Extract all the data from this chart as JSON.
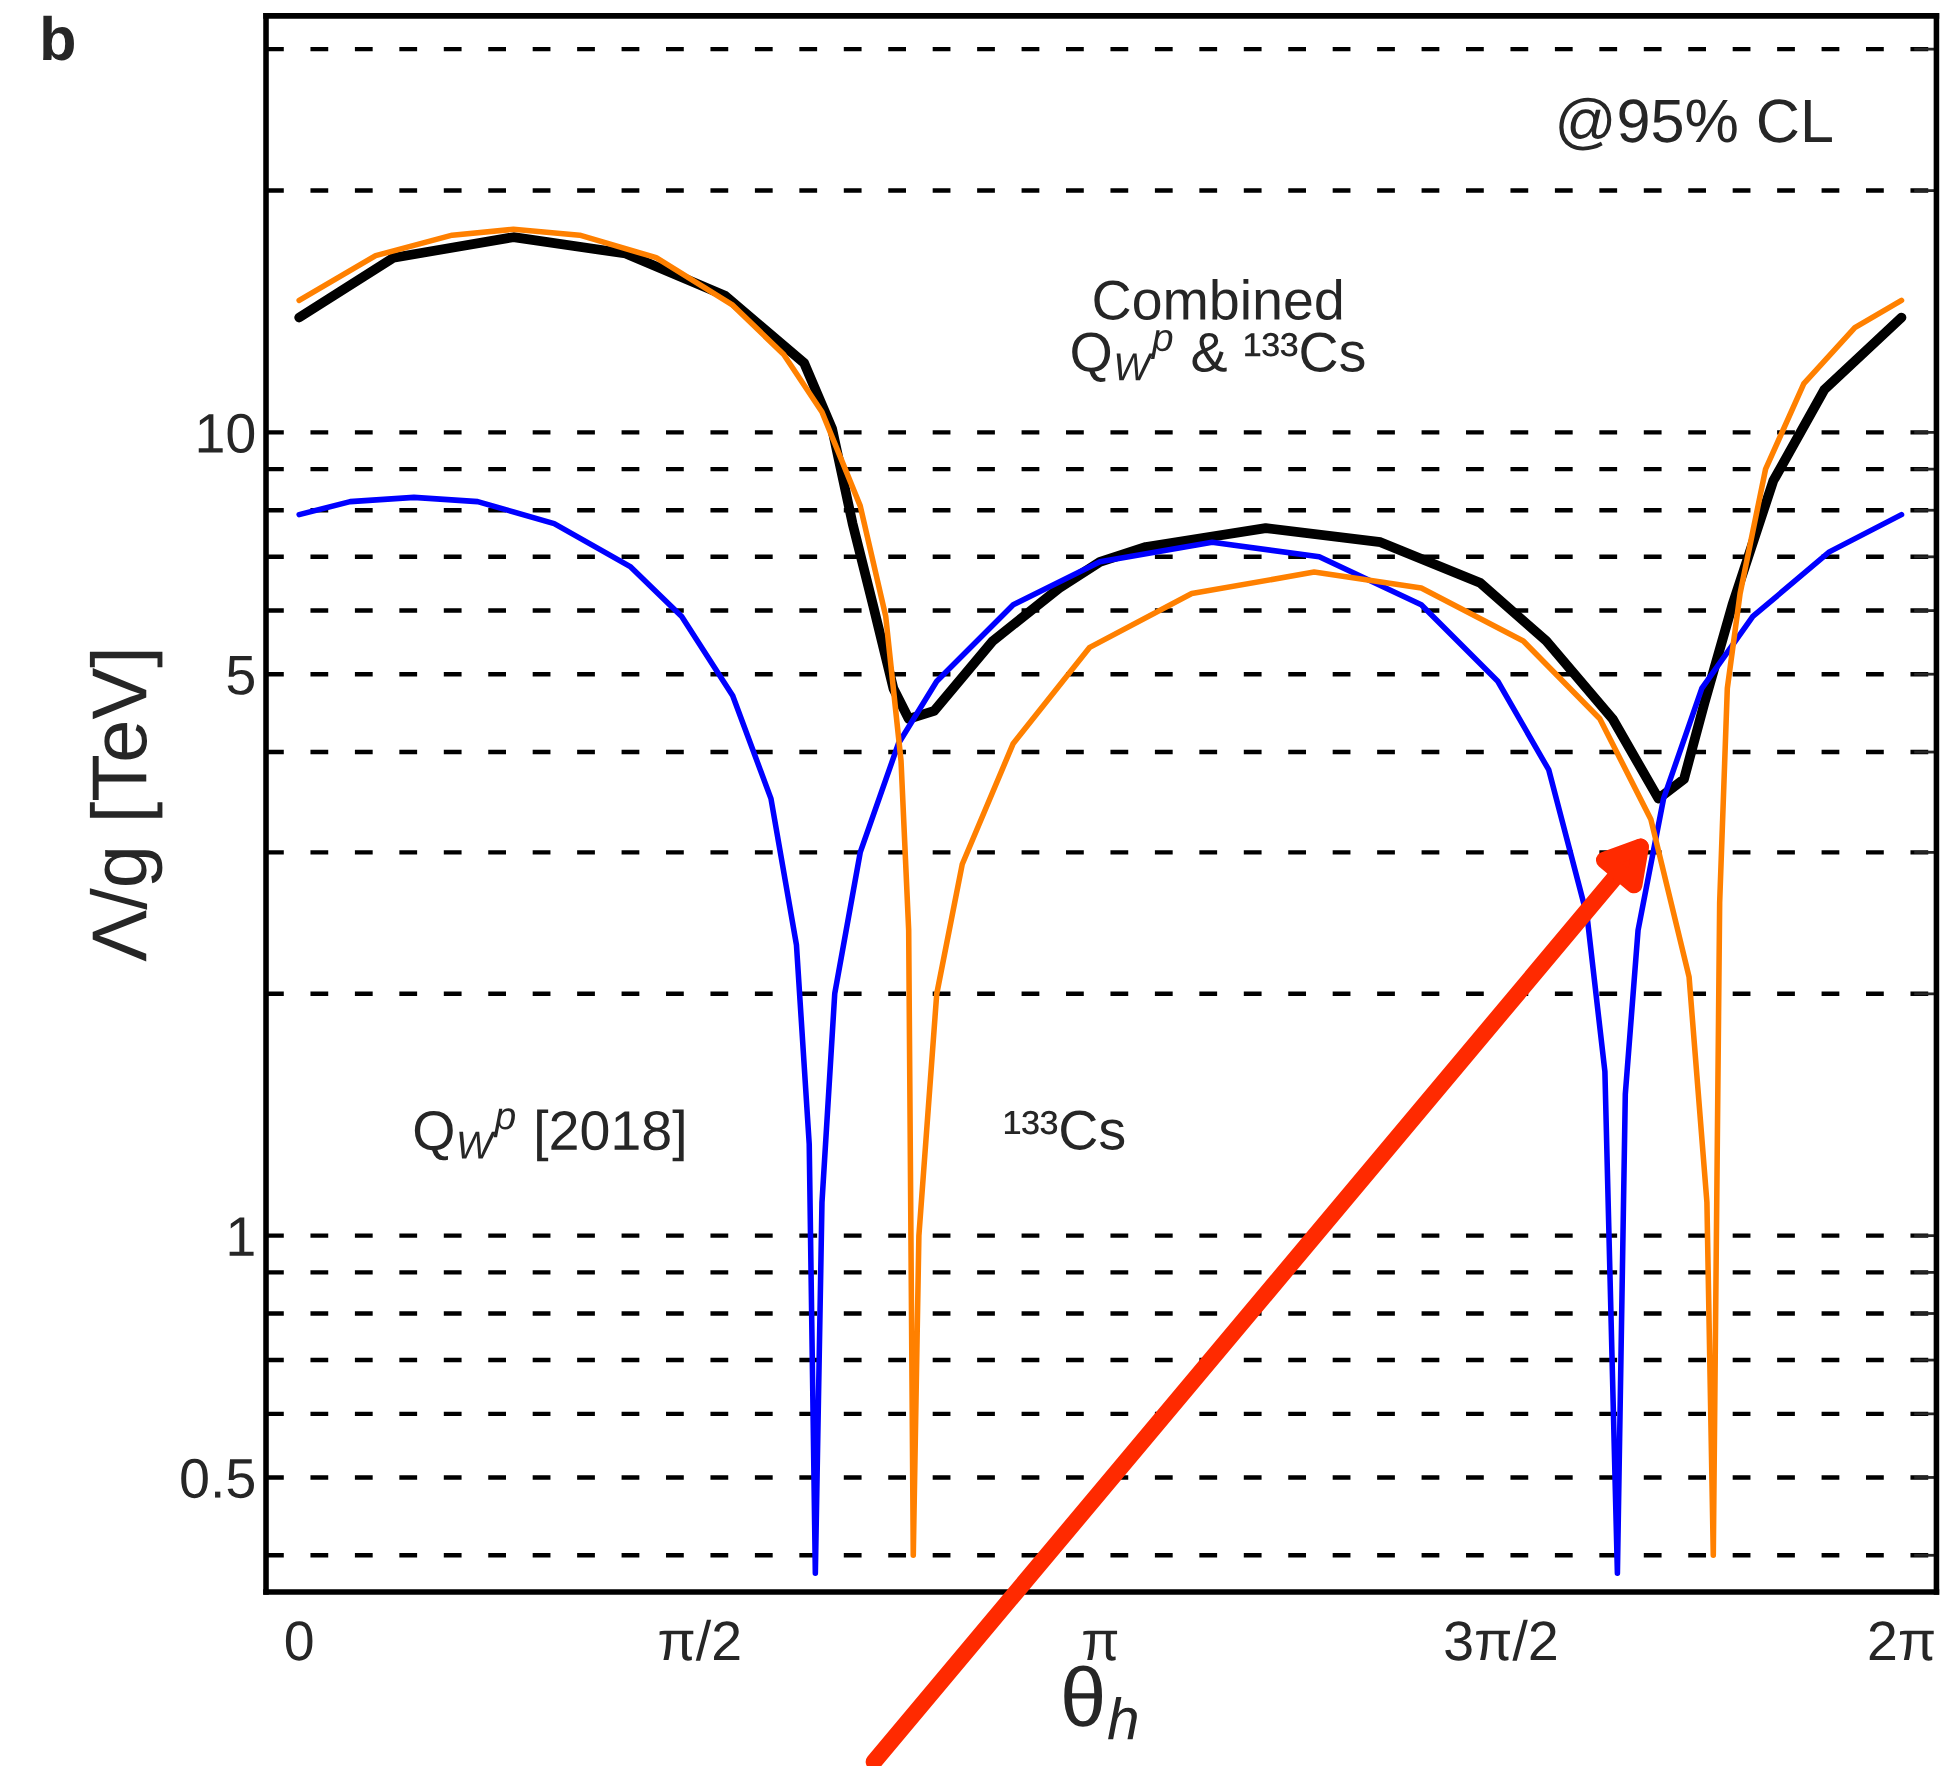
{
  "chart_data": {
    "type": "line",
    "xlabel": "θ$_{h}$",
    "ylabel": "Λ/g [TeV]",
    "annotations": [
      "b",
      "@95% CL"
    ],
    "log": true,
    "grid": "y",
    "marker": "none",
    "line_style": "solid",
    "xlim": [
      -0.13,
      6.42
    ],
    "ylim": [
      0.36,
      33
    ],
    "xticks": [
      {
        "value": 0,
        "label": "0"
      },
      {
        "value": 1.5708,
        "label": "π/2"
      },
      {
        "value": 3.1416,
        "label": "π"
      },
      {
        "value": 4.7124,
        "label": "3π/2"
      },
      {
        "value": 6.2832,
        "label": "2π"
      }
    ],
    "yticks": [
      {
        "value": 0.4,
        "label": null
      },
      0.5,
      {
        "value": 0.6,
        "label": null
      },
      {
        "value": 0.7,
        "label": null
      },
      {
        "value": 0.8,
        "label": null
      },
      {
        "value": 0.9,
        "label": null
      },
      1,
      {
        "value": 2,
        "label": null
      },
      {
        "value": 3,
        "label": null
      },
      {
        "value": 4,
        "label": null
      },
      5,
      {
        "value": 6,
        "label": null
      },
      {
        "value": 7,
        "label": null
      },
      {
        "value": 8,
        "label": null
      },
      {
        "value": 9,
        "label": null
      },
      10,
      {
        "value": 20,
        "label": null
      },
      {
        "value": 30,
        "label": null
      }
    ],
    "series": [
      {
        "name": "Q$_{W}$$^{p}$ [2018]",
        "color": "#0000ff",
        "x": [
          0,
          0.2,
          0.45,
          0.7,
          1.0,
          1.3,
          1.5,
          1.7,
          1.85,
          1.95,
          2.0,
          2.024,
          2.05,
          2.1,
          2.2,
          2.35,
          2.5,
          2.8,
          3.14,
          3.58,
          4.0,
          4.4,
          4.7,
          4.9,
          5.05,
          5.12,
          5.169,
          5.2,
          5.25,
          5.35,
          5.5,
          5.7,
          6.0,
          6.283
        ],
        "values": [
          7.9,
          8.2,
          8.3,
          8.2,
          7.7,
          6.8,
          5.9,
          4.7,
          3.5,
          2.3,
          1.3,
          0.38,
          1.1,
          2.0,
          3.0,
          4.1,
          4.9,
          6.1,
          6.9,
          7.3,
          7.0,
          6.1,
          4.9,
          3.8,
          2.5,
          1.6,
          0.38,
          1.5,
          2.4,
          3.5,
          4.8,
          5.9,
          7.1,
          7.9
        ]
      },
      {
        "name": "¹³³Cs",
        "color": "#ff8000",
        "x": [
          0,
          0.3,
          0.6,
          0.84,
          1.1,
          1.4,
          1.7,
          1.9,
          2.05,
          2.2,
          2.3,
          2.36,
          2.39,
          2.408,
          2.43,
          2.5,
          2.6,
          2.8,
          3.1,
          3.5,
          3.98,
          4.4,
          4.8,
          5.1,
          5.3,
          5.45,
          5.52,
          5.545,
          5.57,
          5.6,
          5.65,
          5.75,
          5.9,
          6.1,
          6.283
        ],
        "values": [
          14.6,
          16.6,
          17.6,
          17.9,
          17.6,
          16.5,
          14.4,
          12.5,
          10.6,
          8.1,
          5.9,
          3.9,
          2.4,
          0.4,
          1.0,
          2.0,
          2.9,
          4.1,
          5.4,
          6.3,
          6.7,
          6.4,
          5.5,
          4.4,
          3.3,
          2.1,
          1.1,
          0.4,
          2.6,
          4.8,
          6.3,
          9.0,
          11.5,
          13.5,
          14.6
        ]
      },
      {
        "name": "Combined\nQ$_{W}$$^{p}$ & ¹³³Cs",
        "color": "#000000",
        "x": [
          0,
          0.37,
          0.84,
          1.28,
          1.67,
          1.98,
          2.09,
          2.17,
          2.25,
          2.33,
          2.39,
          2.49,
          2.72,
          2.98,
          3.14,
          3.32,
          3.79,
          4.24,
          4.63,
          4.89,
          5.15,
          5.33,
          5.43,
          5.51,
          5.62,
          5.78,
          5.98,
          6.283
        ],
        "values": [
          13.9,
          16.5,
          17.5,
          16.7,
          14.8,
          12.2,
          10.1,
          7.7,
          6.1,
          4.8,
          4.4,
          4.5,
          5.5,
          6.4,
          6.9,
          7.2,
          7.6,
          7.3,
          6.5,
          5.5,
          4.4,
          3.5,
          3.7,
          4.6,
          6.1,
          8.7,
          11.3,
          13.9
        ]
      }
    ]
  }
}
